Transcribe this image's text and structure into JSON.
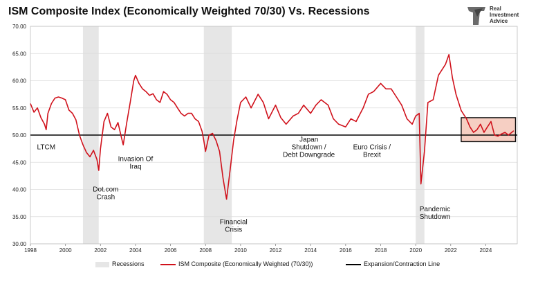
{
  "title": "ISM Composite Index (Economically Weighted 70/30) Vs. Recessions",
  "logo": {
    "line1": "Real",
    "line2": "Investment",
    "line3": "Advice"
  },
  "colors": {
    "series": "#d0111b",
    "recession": "#e6e6e6",
    "threshold": "#000000",
    "box_fill": "#f6cfc3",
    "box_stroke": "#111111"
  },
  "legend": {
    "recessions": "Recessions",
    "series": "ISM Composite (Economically Weighted (70/30))",
    "line": "Expansion/Contraction Line"
  },
  "chart_data": {
    "type": "line",
    "title": "ISM Composite Index (Economically Weighted 70/30) Vs. Recessions",
    "xlabel": "",
    "ylabel": "",
    "xlim": [
      1998,
      2025.8
    ],
    "ylim": [
      30,
      70
    ],
    "y_ticks": [
      "30.00",
      "35.00",
      "40.00",
      "45.00",
      "50.00",
      "55.00",
      "60.00",
      "65.00",
      "70.00"
    ],
    "x_ticks": [
      "1998",
      "2000",
      "2002",
      "2004",
      "2006",
      "2008",
      "2010",
      "2012",
      "2014",
      "2016",
      "2018",
      "2020",
      "2022",
      "2024"
    ],
    "grid": true,
    "legend_position": "bottom",
    "recessions": [
      [
        2001.0,
        2001.9
      ],
      [
        2007.9,
        2009.5
      ],
      [
        2020.0,
        2020.5
      ]
    ],
    "threshold": 50,
    "highlight_box": {
      "x": [
        2022.6,
        2025.7
      ],
      "y": [
        48.8,
        53.2
      ]
    },
    "annotations": [
      {
        "text": "LTCM",
        "x": 1998.9,
        "y": 47.4
      },
      {
        "text": "Dot.com",
        "x": 2002.3,
        "y": 39.6
      },
      {
        "text": "Crash",
        "x": 2002.3,
        "y": 38.2
      },
      {
        "text": "Invasion Of",
        "x": 2004.0,
        "y": 45.2
      },
      {
        "text": "Iraq",
        "x": 2004.0,
        "y": 43.8
      },
      {
        "text": "Financial",
        "x": 2009.6,
        "y": 33.6
      },
      {
        "text": "Crisis",
        "x": 2009.6,
        "y": 32.2
      },
      {
        "text": "Japan",
        "x": 2013.9,
        "y": 48.8
      },
      {
        "text": "Shutdown /",
        "x": 2013.9,
        "y": 47.4
      },
      {
        "text": "Debt Downgrade",
        "x": 2013.9,
        "y": 46.0
      },
      {
        "text": "Euro Crisis /",
        "x": 2017.5,
        "y": 47.4
      },
      {
        "text": "Brexit",
        "x": 2017.5,
        "y": 46.0
      },
      {
        "text": "Pandemic",
        "x": 2021.1,
        "y": 36.0
      },
      {
        "text": "Shutdown",
        "x": 2021.1,
        "y": 34.6
      }
    ],
    "series": [
      {
        "name": "ISM Composite (Economically Weighted (70/30))",
        "x": [
          1998.0,
          1998.2,
          1998.4,
          1998.6,
          1998.8,
          1998.9,
          1999.0,
          1999.2,
          1999.4,
          1999.6,
          1999.8,
          2000.0,
          2000.2,
          2000.4,
          2000.6,
          2000.8,
          2001.0,
          2001.2,
          2001.4,
          2001.6,
          2001.8,
          2001.9,
          2002.0,
          2002.2,
          2002.4,
          2002.6,
          2002.8,
          2003.0,
          2003.2,
          2003.3,
          2003.5,
          2003.7,
          2003.9,
          2004.0,
          2004.2,
          2004.4,
          2004.6,
          2004.8,
          2005.0,
          2005.2,
          2005.4,
          2005.6,
          2005.8,
          2006.0,
          2006.2,
          2006.4,
          2006.6,
          2006.8,
          2007.0,
          2007.2,
          2007.4,
          2007.6,
          2007.8,
          2007.9,
          2008.0,
          2008.2,
          2008.4,
          2008.6,
          2008.8,
          2009.0,
          2009.2,
          2009.4,
          2009.6,
          2009.8,
          2010.0,
          2010.3,
          2010.6,
          2011.0,
          2011.3,
          2011.6,
          2012.0,
          2012.3,
          2012.6,
          2013.0,
          2013.3,
          2013.6,
          2014.0,
          2014.3,
          2014.6,
          2015.0,
          2015.3,
          2015.6,
          2016.0,
          2016.3,
          2016.6,
          2017.0,
          2017.3,
          2017.6,
          2018.0,
          2018.3,
          2018.6,
          2018.9,
          2019.2,
          2019.5,
          2019.8,
          2020.0,
          2020.2,
          2020.3,
          2020.5,
          2020.7,
          2021.0,
          2021.3,
          2021.5,
          2021.7,
          2021.9,
          2022.1,
          2022.3,
          2022.6,
          2022.9,
          2023.1,
          2023.3,
          2023.5,
          2023.7,
          2023.9,
          2024.1,
          2024.3,
          2024.5,
          2024.7,
          2024.9,
          2025.1,
          2025.3,
          2025.6
        ],
        "values": [
          55.8,
          54.2,
          55.0,
          53.2,
          52.0,
          51.0,
          54.0,
          55.8,
          56.8,
          57.0,
          56.8,
          56.5,
          54.6,
          54.0,
          52.8,
          50.0,
          48.2,
          46.8,
          46.0,
          47.2,
          45.5,
          43.5,
          47.5,
          52.5,
          54.0,
          51.5,
          51.0,
          52.3,
          49.5,
          48.2,
          52.3,
          56.0,
          60.0,
          61.0,
          59.5,
          58.5,
          58.0,
          57.3,
          57.6,
          56.5,
          56.0,
          58.0,
          57.5,
          56.5,
          56.0,
          55.0,
          54.0,
          53.5,
          54.0,
          54.0,
          53.0,
          52.5,
          50.7,
          49.0,
          47.0,
          50.0,
          50.3,
          49.0,
          47.0,
          42.0,
          38.2,
          43.5,
          49.0,
          52.8,
          56.0,
          57.0,
          55.0,
          57.5,
          56.0,
          53.0,
          55.5,
          53.2,
          52.0,
          53.5,
          54.0,
          55.5,
          54.0,
          55.5,
          56.5,
          55.5,
          53.0,
          52.0,
          51.5,
          53.0,
          52.5,
          55.0,
          57.5,
          58.0,
          59.5,
          58.5,
          58.5,
          57.0,
          55.5,
          53.0,
          52.0,
          53.5,
          54.0,
          41.0,
          47.0,
          56.0,
          56.5,
          61.0,
          62.0,
          63.0,
          64.8,
          60.5,
          57.5,
          54.5,
          53.0,
          51.5,
          50.5,
          51.0,
          52.0,
          50.5,
          51.5,
          52.5,
          50.0,
          49.8,
          50.2,
          50.5,
          50.0,
          50.8
        ]
      }
    ]
  }
}
